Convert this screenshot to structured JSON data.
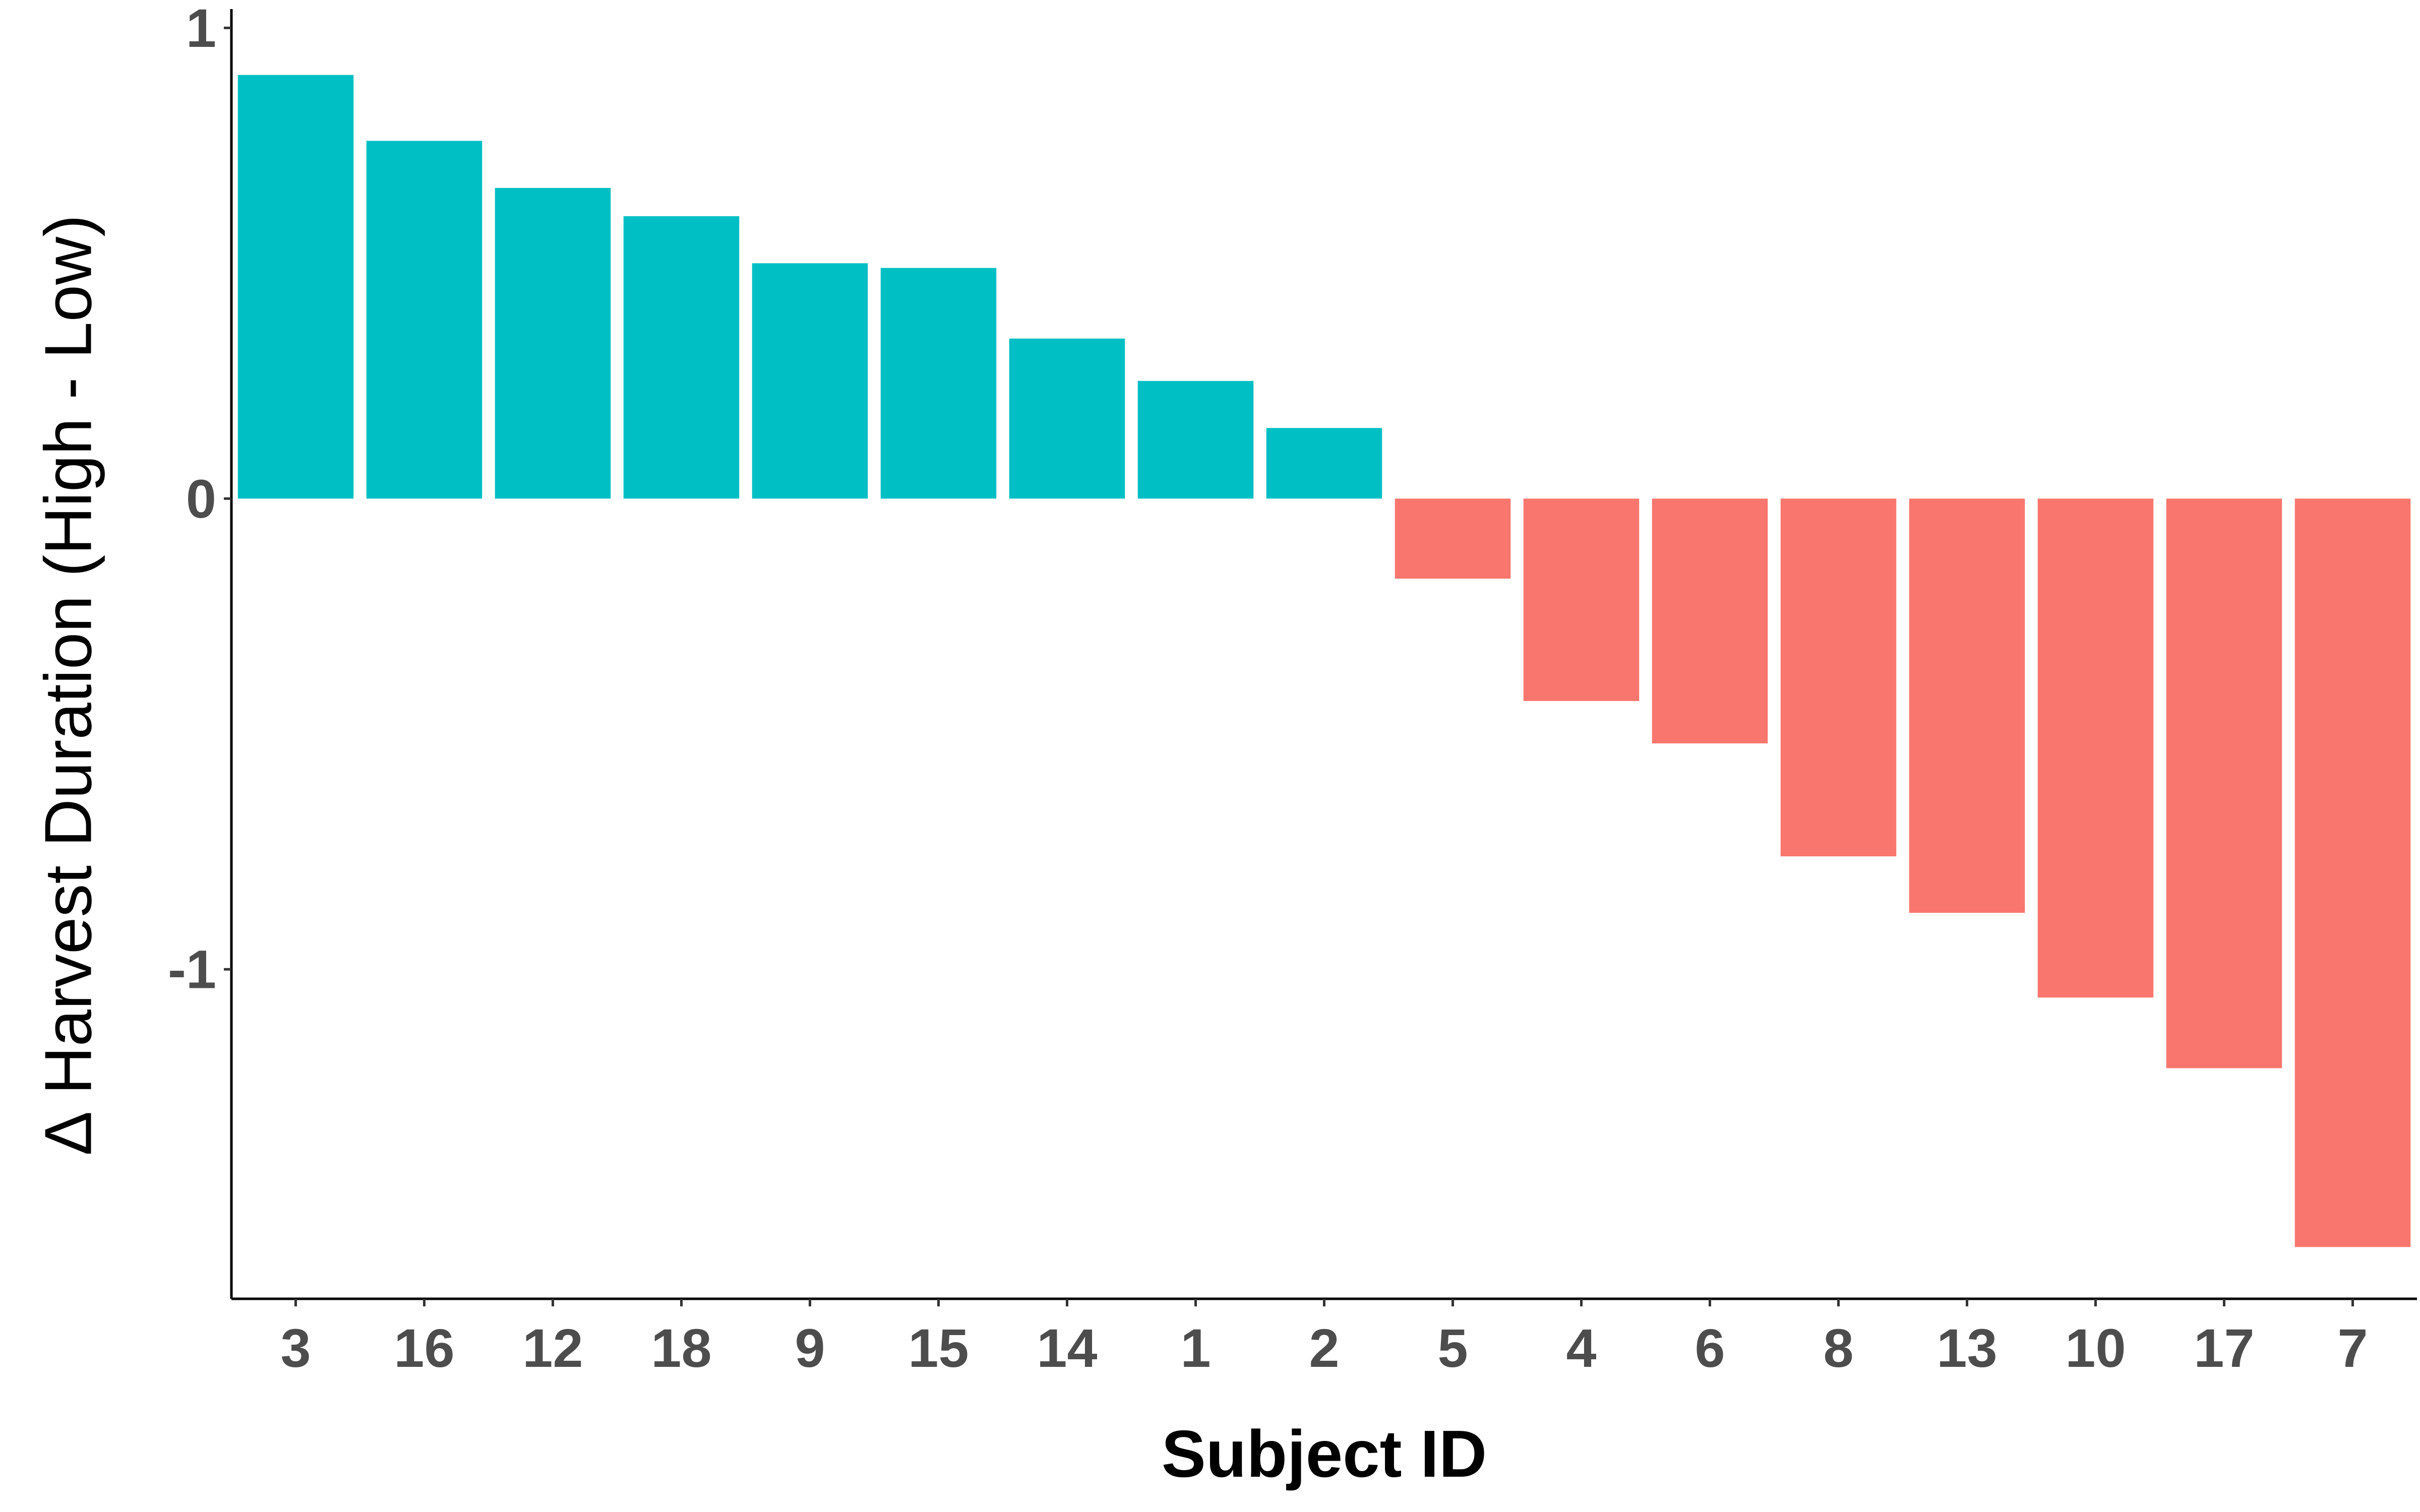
{
  "chart_data": {
    "type": "bar",
    "xlabel": "Subject ID",
    "ylabel": "∆ Harvest Duration (High - Low)",
    "ylim": [
      -1.7,
      1.04
    ],
    "yticks": [
      1,
      0,
      -1
    ],
    "ytick_labels": [
      "1",
      "0",
      "-1"
    ],
    "grid": false,
    "legend": "none",
    "colors": {
      "positive": "#00BFC4",
      "negative": "#F8766D"
    },
    "categories": [
      "3",
      "16",
      "12",
      "18",
      "9",
      "15",
      "14",
      "1",
      "2",
      "5",
      "4",
      "6",
      "8",
      "13",
      "10",
      "17",
      "7"
    ],
    "values": [
      0.9,
      0.76,
      0.66,
      0.6,
      0.5,
      0.49,
      0.34,
      0.25,
      0.15,
      -0.17,
      -0.43,
      -0.52,
      -0.76,
      -0.88,
      -1.06,
      -1.21,
      -1.59
    ]
  }
}
